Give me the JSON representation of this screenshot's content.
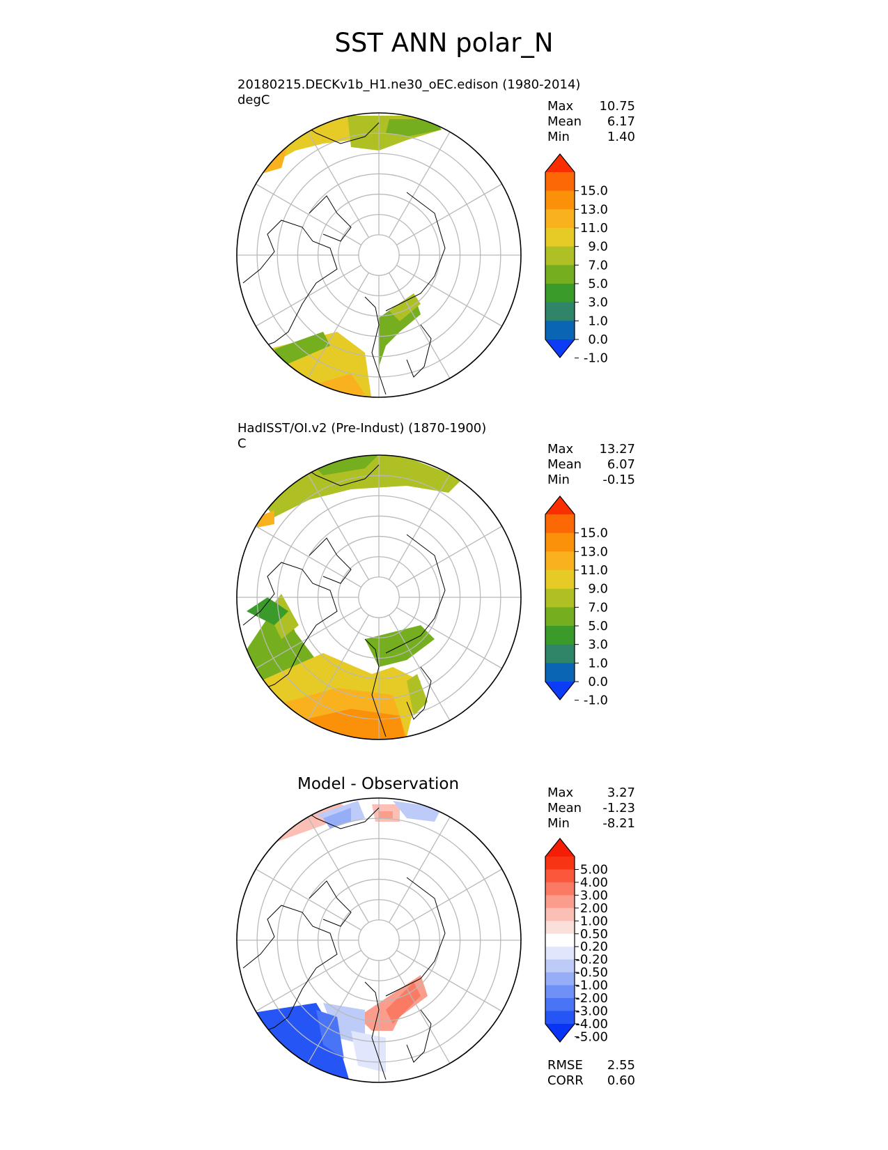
{
  "title": "SST ANN polar_N",
  "panels": [
    {
      "id": "test",
      "title_line1": "20180215.DECKv1b_H1.ne30_oEC.edison (1980-2014)",
      "title_line2": "degC",
      "stats": [
        {
          "label": "Max",
          "value": "10.75"
        },
        {
          "label": "Mean",
          "value": "6.17"
        },
        {
          "label": "Min",
          "value": "1.40"
        }
      ]
    },
    {
      "id": "ref",
      "title_line1": "HadISST/OI.v2 (Pre-Indust) (1870-1900)",
      "title_line2": "C",
      "stats": [
        {
          "label": "Max",
          "value": "13.27"
        },
        {
          "label": "Mean",
          "value": "6.07"
        },
        {
          "label": "Min",
          "value": "-0.15"
        }
      ]
    },
    {
      "id": "diff",
      "title_line1": "Model - Observation",
      "stats": [
        {
          "label": "Max",
          "value": "3.27"
        },
        {
          "label": "Mean",
          "value": "-1.23"
        },
        {
          "label": "Min",
          "value": "-8.21"
        }
      ],
      "extra_stats": [
        {
          "label": "RMSE",
          "value": "2.55"
        },
        {
          "label": "CORR",
          "value": "0.60"
        }
      ]
    }
  ],
  "colorbars": {
    "sst": {
      "colors": [
        "#0c3cf5",
        "#0a66b4",
        "#2f8568",
        "#3b9b2a",
        "#75ae1e",
        "#afc024",
        "#e6cb27",
        "#f9b21d",
        "#fb9009",
        "#fc6805",
        "#fb2e01"
      ],
      "ticks": [
        "15.0",
        "13.0",
        "11.0",
        "9.0",
        "7.0",
        "5.0",
        "3.0",
        "1.0",
        "0.0",
        "-1.0"
      ]
    },
    "diff": {
      "colors": [
        "#0a34f5",
        "#2655f6",
        "#4a74f6",
        "#6f90f6",
        "#96adf7",
        "#bccbf8",
        "#e0e6fb",
        "#ffffff",
        "#fbdfdb",
        "#fbbfb6",
        "#fb9d8c",
        "#fb7a63",
        "#fa573b",
        "#f73512",
        "#f41e06"
      ],
      "ticks": [
        "5.00",
        "4.00",
        "3.00",
        "2.00",
        "1.00",
        "0.50",
        "0.20",
        "-0.20",
        "-0.50",
        "-1.00",
        "-2.00",
        "-3.00",
        "-4.00",
        "-5.00"
      ]
    }
  },
  "map": {
    "projection": "north polar stereographic",
    "grid_color": "#b9b9b9",
    "coast_color": "#000000"
  }
}
